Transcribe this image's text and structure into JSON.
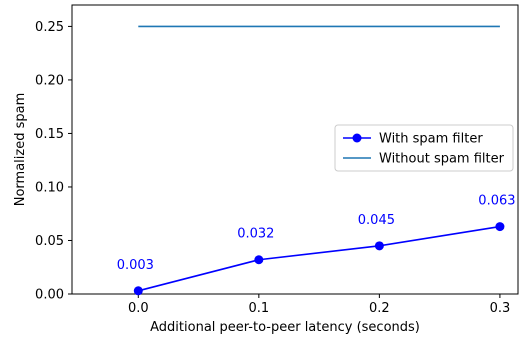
{
  "chart_data": {
    "type": "line",
    "xlabel": "Additional peer-to-peer latency (seconds)",
    "ylabel": "Normalized spam",
    "xlim": [
      -0.055,
      0.315
    ],
    "ylim": [
      0,
      0.27
    ],
    "xticks": [
      0.0,
      0.1,
      0.2,
      0.3
    ],
    "xtick_labels": [
      "0.0",
      "0.1",
      "0.2",
      "0.3"
    ],
    "yticks": [
      0.0,
      0.05,
      0.1,
      0.15,
      0.2,
      0.25
    ],
    "ytick_labels": [
      "0.00",
      "0.05",
      "0.10",
      "0.15",
      "0.20",
      "0.25"
    ],
    "grid": false,
    "legend_position": "center-right",
    "series": [
      {
        "name": "With spam filter",
        "color": "#0000ff",
        "marker": "circle",
        "x": [
          0.0,
          0.1,
          0.2,
          0.3
        ],
        "values": [
          0.003,
          0.032,
          0.045,
          0.063
        ],
        "data_labels": [
          "0.003",
          "0.032",
          "0.045",
          "0.063"
        ]
      },
      {
        "name": "Without spam filter",
        "color": "#1f77b4",
        "marker": "none",
        "x": [
          0.0,
          0.3
        ],
        "values": [
          0.25,
          0.25
        ]
      }
    ]
  }
}
